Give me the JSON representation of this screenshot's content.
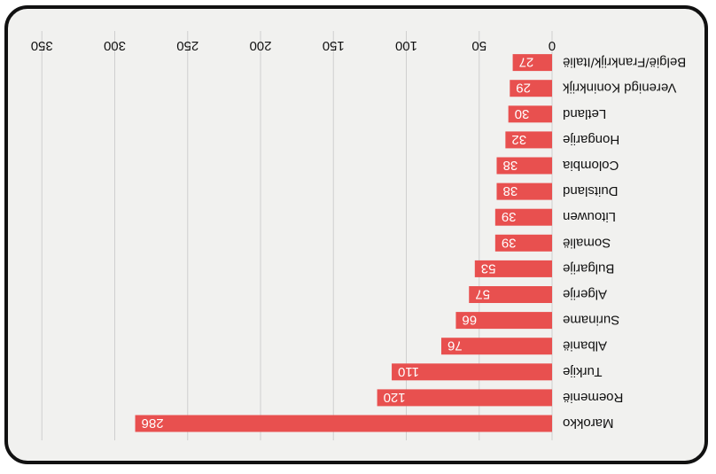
{
  "chart_data": {
    "type": "bar",
    "orientation": "horizontal",
    "rendering": "image rotated 180 degrees",
    "categories": [
      "Marokko",
      "Roemenië",
      "Turkije",
      "Albanië",
      "Suriname",
      "Algerije",
      "Bulgarije",
      "Somalië",
      "Litouwen",
      "Duitsland",
      "Colombia",
      "Hongarije",
      "Letland",
      "Verenigd Koninkrijk",
      "België/Frankrijk/Italië"
    ],
    "values": [
      286,
      120,
      110,
      76,
      66,
      57,
      53,
      39,
      39,
      38,
      38,
      32,
      30,
      29,
      27
    ],
    "value_labels": [
      "286",
      "120",
      "110",
      "76",
      "66",
      "57",
      "53",
      "39",
      "39",
      "38",
      "38",
      "32",
      "30",
      "29",
      "27"
    ],
    "xticks": [
      "0",
      "50",
      "100",
      "150",
      "200",
      "250",
      "300",
      "350"
    ],
    "xlim": [
      0,
      350
    ],
    "grid": true,
    "colors": {
      "bar": "#e8504f",
      "grid": "#cfcfcf",
      "background": "#f1f1ef",
      "frame": "#111111"
    }
  }
}
